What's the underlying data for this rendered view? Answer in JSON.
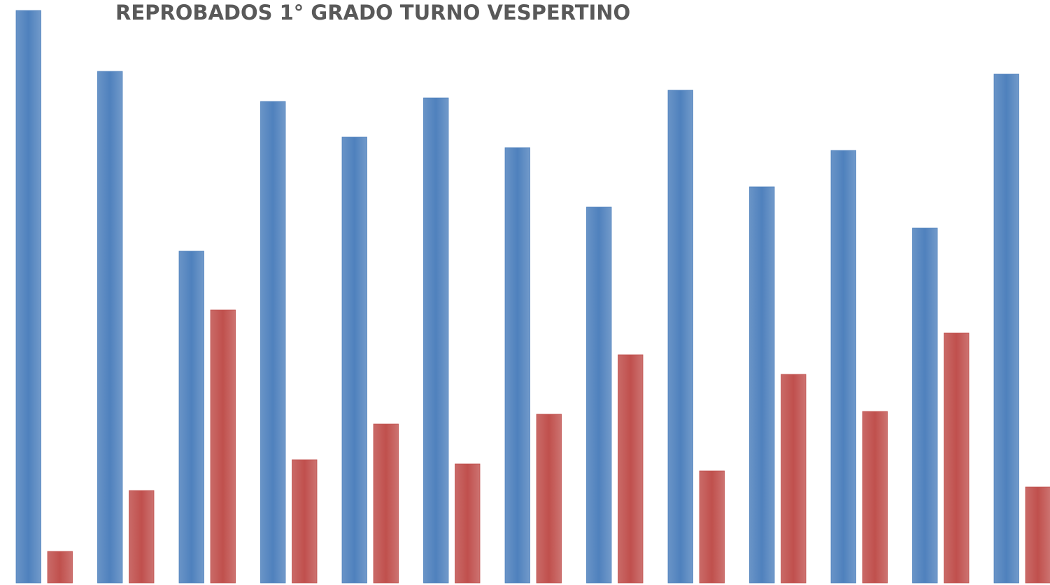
{
  "chart_data": {
    "type": "bar",
    "title": "REPROBADOS 1° GRADO TURNO VESPERTINO",
    "categories": [
      null,
      null,
      null,
      null,
      null,
      null,
      null,
      null,
      null,
      null,
      null,
      null,
      null
    ],
    "series": [
      {
        "color": "#4f81bd",
        "values": [
          818,
          731,
          474,
          688,
          637,
          693,
          622,
          537,
          704,
          566,
          618,
          507,
          727
        ]
      },
      {
        "color": "#c0504d",
        "values": [
          45,
          132,
          390,
          176,
          227,
          170,
          241,
          326,
          160,
          298,
          245,
          357,
          137
        ]
      }
    ],
    "ylim": [
      0,
      818
    ]
  }
}
